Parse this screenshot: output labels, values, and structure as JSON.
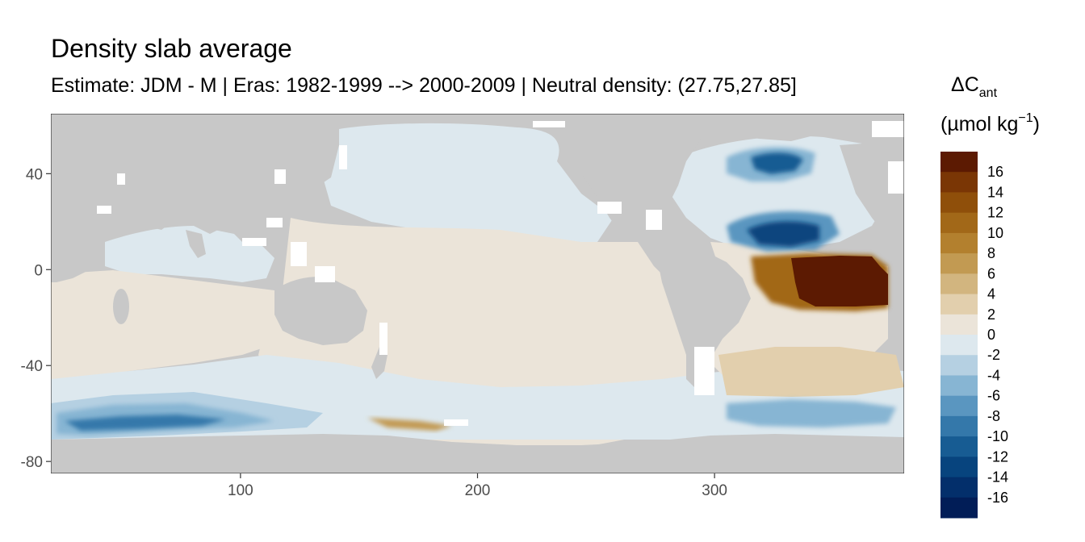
{
  "title": "Density slab average",
  "subtitle": "Estimate: JDM - M | Eras: 1982-1999 --> 2000-2009 | Neutral density: (27.75,27.85]",
  "colors": {
    "land": "#c8c8c8",
    "missing": "#ffffff",
    "panel_border": "#333333"
  },
  "chart_data": {
    "type": "heatmap",
    "title": "Density slab average",
    "subtitle": "Estimate: JDM - M | Eras: 1982-1999 --> 2000-2009 | Neutral density: (27.75,27.85]",
    "xlim": [
      20,
      380
    ],
    "ylim": [
      -85,
      65
    ],
    "x_ticks": [
      100,
      200,
      300
    ],
    "y_ticks": [
      40,
      0,
      -40,
      -80
    ],
    "x_tick_labels": [
      "100",
      "200",
      "300"
    ],
    "y_tick_labels": [
      "40",
      "0",
      "-40",
      "-80"
    ],
    "grid": false,
    "legend": {
      "position": "right",
      "title_main": "ΔC",
      "title_sub": "ant",
      "title_units": "(µmol kg",
      "title_units_sup": "−1",
      "title_units_end": ")",
      "bins": [
        {
          "label": "16",
          "color": "#5c1a02"
        },
        {
          "label": "14",
          "color": "#7a3605"
        },
        {
          "label": "12",
          "color": "#8f4f0a"
        },
        {
          "label": "10",
          "color": "#a26818"
        },
        {
          "label": "8",
          "color": "#b3802e"
        },
        {
          "label": "6",
          "color": "#c29a52"
        },
        {
          "label": "4",
          "color": "#d2b57f"
        },
        {
          "label": "2",
          "color": "#e2cfad"
        },
        {
          "label": "0",
          "color": "#ebe4d9"
        },
        {
          "label": "-2",
          "color": "#dde8ee"
        },
        {
          "label": "-4",
          "color": "#b5d0e2"
        },
        {
          "label": "-6",
          "color": "#87b5d3"
        },
        {
          "label": "-8",
          "color": "#5a96c0"
        },
        {
          "label": "-10",
          "color": "#3478aa"
        },
        {
          "label": "-12",
          "color": "#175c93"
        },
        {
          "label": "-14",
          "color": "#07447e"
        },
        {
          "label": "-16",
          "color": "#032f6b"
        },
        {
          "label": "",
          "color": "#011d57"
        }
      ]
    }
  }
}
